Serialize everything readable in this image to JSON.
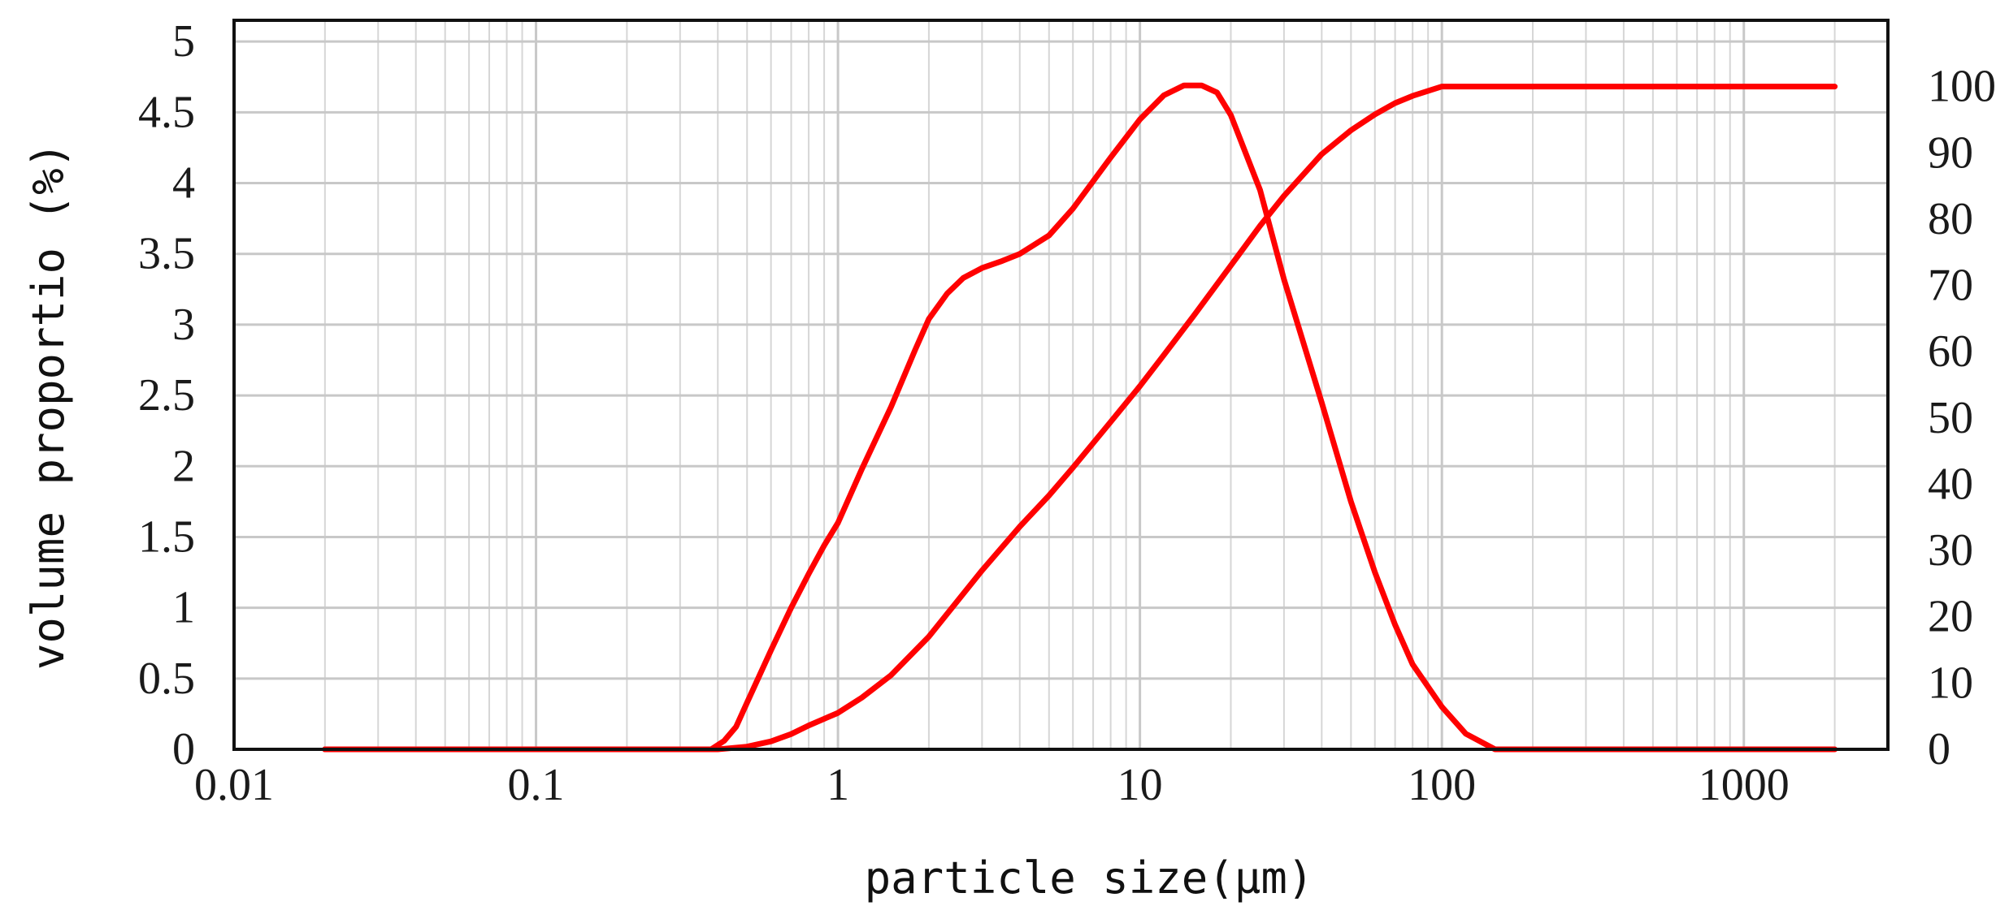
{
  "chart_data": {
    "type": "line",
    "title": "",
    "xlabel": "particle size(μm)",
    "ylabel": "volume proportio (%)",
    "x_scale": "log",
    "xlim": [
      0.01,
      3000
    ],
    "ylim": [
      0,
      5.15
    ],
    "y2lim": [
      0,
      110
    ],
    "x_ticks": [
      0.01,
      0.1,
      1,
      10,
      100,
      1000
    ],
    "x_tick_labels": [
      "0.01",
      "0.1",
      "1",
      "10",
      "100",
      "1000"
    ],
    "y_ticks": [
      0,
      0.5,
      1,
      1.5,
      2,
      2.5,
      3,
      3.5,
      4,
      4.5,
      5
    ],
    "y_tick_labels": [
      "0",
      "0.5",
      "1",
      "1.5",
      "2",
      "2.5",
      "3",
      "3.5",
      "4",
      "4.5",
      "5"
    ],
    "y2_ticks": [
      0,
      10,
      20,
      30,
      40,
      50,
      60,
      70,
      80,
      90,
      100
    ],
    "y2_tick_labels": [
      "0",
      "10",
      "20",
      "30",
      "40",
      "50",
      "60",
      "70",
      "80",
      "90",
      "100"
    ],
    "grid": true,
    "legend": "none",
    "series_color": "#ff0000",
    "series": [
      {
        "axis": "left",
        "x": [
          0.02,
          0.05,
          0.1,
          0.2,
          0.38,
          0.42,
          0.46,
          0.5,
          0.6,
          0.7,
          0.8,
          0.9,
          1.0,
          1.2,
          1.5,
          1.8,
          2.0,
          2.3,
          2.6,
          3.0,
          3.5,
          4.0,
          5.0,
          6.0,
          8.0,
          10.0,
          12.0,
          14.0,
          16.0,
          18.0,
          20.0,
          25.0,
          30.0,
          40.0,
          50.0,
          60.0,
          70.0,
          80.0,
          100.0,
          120.0,
          150.0,
          170.0,
          200.0,
          500.0,
          1000.0,
          2000.0
        ],
        "values": [
          0,
          0,
          0,
          0,
          0,
          0.06,
          0.16,
          0.33,
          0.7,
          1.0,
          1.24,
          1.44,
          1.6,
          1.98,
          2.42,
          2.82,
          3.04,
          3.22,
          3.33,
          3.4,
          3.45,
          3.5,
          3.63,
          3.82,
          4.18,
          4.45,
          4.62,
          4.69,
          4.69,
          4.64,
          4.48,
          3.95,
          3.32,
          2.45,
          1.75,
          1.25,
          0.88,
          0.6,
          0.3,
          0.11,
          0.0,
          0,
          0,
          0,
          0,
          0
        ]
      },
      {
        "axis": "right",
        "x": [
          0.02,
          0.05,
          0.1,
          0.2,
          0.4,
          0.5,
          0.6,
          0.7,
          0.8,
          1.0,
          1.2,
          1.5,
          2.0,
          2.5,
          3.0,
          4.0,
          5.0,
          6.0,
          8.0,
          10.0,
          12.0,
          15.0,
          20.0,
          25.0,
          30.0,
          40.0,
          50.0,
          60.0,
          70.0,
          80.0,
          100.0,
          200.0,
          500.0,
          1000.0,
          2000.0
        ],
        "values": [
          0,
          0,
          0,
          0,
          0,
          0.4,
          1.2,
          2.3,
          3.6,
          5.5,
          7.8,
          11.2,
          17.0,
          22.5,
          27.0,
          33.6,
          38.3,
          42.5,
          49.4,
          54.8,
          59.5,
          65.3,
          73.0,
          79.0,
          83.5,
          89.8,
          93.4,
          95.8,
          97.5,
          98.6,
          100,
          100,
          100,
          100,
          100
        ]
      }
    ]
  }
}
